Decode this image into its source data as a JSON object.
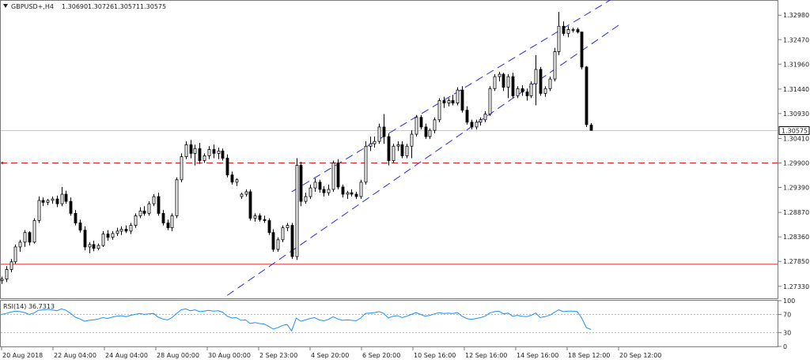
{
  "header": {
    "symbol": "GBPUSD+,H4",
    "open": "1.30690",
    "high": "1.30726",
    "low": "1.30571",
    "close": "1.30575"
  },
  "price_axis": {
    "labels": [
      "1.32980",
      "1.32470",
      "1.31960",
      "1.31440",
      "1.30930",
      "1.30410",
      "1.29900",
      "1.29390",
      "1.28870",
      "1.28360",
      "1.27850",
      "1.27330"
    ],
    "current_price": "1.30575"
  },
  "levels": {
    "resistance_dashed": 1.299,
    "support_solid": 1.2779
  },
  "rsi": {
    "label": "RSI(14) 36.7313",
    "axis_labels": [
      "100",
      "70",
      "30",
      "0"
    ],
    "levels": [
      70,
      30
    ]
  },
  "time_axis": {
    "labels": [
      "20 Aug 2018",
      "22 Aug 04:00",
      "24 Aug 04:00",
      "28 Aug 00:00",
      "30 Aug 00:00",
      "2 Sep 23:00",
      "4 Sep 20:00",
      "6 Sep 20:00",
      "10 Sep 16:00",
      "12 Sep 16:00",
      "14 Sep 16:00",
      "18 Sep 12:00",
      "20 Sep 12:00"
    ]
  },
  "colors": {
    "bull_fill": "#ffffff",
    "bear_fill": "#000000",
    "channel": "#2a2ae0",
    "level": "#e02020",
    "rsi_line": "#1e90ff"
  },
  "chart_data": {
    "type": "candlestick",
    "symbol": "GBPUSD+",
    "timeframe": "H4",
    "ylim": [
      1.2708,
      1.3328
    ],
    "x_range": [
      0,
      134
    ],
    "candles": [
      [
        1.2745,
        1.2753,
        1.2738,
        1.2748
      ],
      [
        1.2748,
        1.2775,
        1.2742,
        1.2768
      ],
      [
        1.2768,
        1.279,
        1.2762,
        1.2784
      ],
      [
        1.2784,
        1.282,
        1.278,
        1.2815
      ],
      [
        1.2815,
        1.283,
        1.2805,
        1.2825
      ],
      [
        1.2825,
        1.285,
        1.2815,
        1.2845
      ],
      [
        1.2845,
        1.2848,
        1.2818,
        1.2825
      ],
      [
        1.2825,
        1.2875,
        1.2822,
        1.287
      ],
      [
        1.287,
        1.292,
        1.2865,
        1.2912
      ],
      [
        1.2912,
        1.2918,
        1.29,
        1.2908
      ],
      [
        1.2908,
        1.2915,
        1.2902,
        1.2912
      ],
      [
        1.2912,
        1.292,
        1.2905,
        1.2915
      ],
      [
        1.2915,
        1.2922,
        1.2898,
        1.2905
      ],
      [
        1.2905,
        1.294,
        1.29,
        1.2925
      ],
      [
        1.2925,
        1.2932,
        1.2905,
        1.291
      ],
      [
        1.291,
        1.2918,
        1.288,
        1.2885
      ],
      [
        1.2885,
        1.2892,
        1.286,
        1.2865
      ],
      [
        1.2865,
        1.2872,
        1.2845,
        1.285
      ],
      [
        1.285,
        1.2858,
        1.2808,
        1.2815
      ],
      [
        1.2815,
        1.2825,
        1.2802,
        1.282
      ],
      [
        1.282,
        1.2828,
        1.2806,
        1.2812
      ],
      [
        1.2812,
        1.2822,
        1.2808,
        1.2818
      ],
      [
        1.2818,
        1.2848,
        1.2815,
        1.2842
      ],
      [
        1.2842,
        1.285,
        1.2828,
        1.2835
      ],
      [
        1.2835,
        1.2848,
        1.283,
        1.2843
      ],
      [
        1.2843,
        1.2855,
        1.2838,
        1.2848
      ],
      [
        1.2848,
        1.2858,
        1.284,
        1.2852
      ],
      [
        1.2852,
        1.286,
        1.2844,
        1.2848
      ],
      [
        1.2848,
        1.2865,
        1.2842,
        1.286
      ],
      [
        1.286,
        1.2885,
        1.2855,
        1.288
      ],
      [
        1.288,
        1.2898,
        1.2875,
        1.289
      ],
      [
        1.289,
        1.29,
        1.288,
        1.2885
      ],
      [
        1.2885,
        1.291,
        1.288,
        1.2905
      ],
      [
        1.2905,
        1.2925,
        1.29,
        1.292
      ],
      [
        1.292,
        1.2928,
        1.288,
        1.2885
      ],
      [
        1.2885,
        1.2892,
        1.286,
        1.2865
      ],
      [
        1.2865,
        1.2872,
        1.285,
        1.2855
      ],
      [
        1.2855,
        1.2885,
        1.2848,
        1.288
      ],
      [
        1.288,
        1.296,
        1.2875,
        1.2955
      ],
      [
        1.2955,
        1.301,
        1.295,
        1.3003
      ],
      [
        1.3003,
        1.3035,
        1.2998,
        1.3028
      ],
      [
        1.3028,
        1.3038,
        1.3,
        1.301
      ],
      [
        1.301,
        1.3028,
        1.2985,
        1.302
      ],
      [
        1.302,
        1.3032,
        1.2988,
        1.2995
      ],
      [
        1.2995,
        1.301,
        1.299,
        1.3005
      ],
      [
        1.3005,
        1.3025,
        1.2998,
        1.3018
      ],
      [
        1.3018,
        1.3028,
        1.3,
        1.301
      ],
      [
        1.301,
        1.3022,
        1.2998,
        1.3015
      ],
      [
        1.3015,
        1.302,
        1.2995,
        1.3
      ],
      [
        1.3,
        1.3008,
        1.296,
        1.2965
      ],
      [
        1.2965,
        1.2972,
        1.2945,
        1.295
      ],
      [
        1.295,
        1.2958,
        1.2942,
        1.2955
      ],
      [
        1.292,
        1.2928,
        1.2915,
        1.2925
      ],
      [
        1.2925,
        1.2935,
        1.292,
        1.293
      ],
      [
        1.293,
        1.2935,
        1.287,
        1.2875
      ],
      [
        1.2875,
        1.2885,
        1.2868,
        1.288
      ],
      [
        1.288,
        1.2885,
        1.2868,
        1.2872
      ],
      [
        1.2872,
        1.288,
        1.2865,
        1.287
      ],
      [
        1.287,
        1.2875,
        1.284,
        1.2845
      ],
      [
        1.2845,
        1.2852,
        1.2805,
        1.281
      ],
      [
        1.281,
        1.2835,
        1.2805,
        1.283
      ],
      [
        1.283,
        1.286,
        1.2825,
        1.2855
      ],
      [
        1.2855,
        1.2865,
        1.2848,
        1.286
      ],
      [
        1.286,
        1.2865,
        1.279,
        1.2795
      ],
      [
        1.2795,
        1.3,
        1.2788,
        1.2985
      ],
      [
        1.2985,
        1.2992,
        1.29,
        1.291
      ],
      [
        1.291,
        1.2928,
        1.2905,
        1.292
      ],
      [
        1.292,
        1.2945,
        1.2915,
        1.2938
      ],
      [
        1.2938,
        1.2958,
        1.293,
        1.295
      ],
      [
        1.295,
        1.2955,
        1.2928,
        1.2935
      ],
      [
        1.2935,
        1.2942,
        1.292,
        1.2928
      ],
      [
        1.2928,
        1.2945,
        1.2922,
        1.2935
      ],
      [
        1.2935,
        1.2995,
        1.293,
        1.299
      ],
      [
        1.299,
        1.2998,
        1.2935,
        1.294
      ],
      [
        1.294,
        1.2945,
        1.2918,
        1.2925
      ],
      [
        1.2925,
        1.2932,
        1.2915,
        1.2928
      ],
      [
        1.2928,
        1.2935,
        1.292,
        1.2925
      ],
      [
        1.2925,
        1.293,
        1.2915,
        1.292
      ],
      [
        1.292,
        1.2955,
        1.2915,
        1.295
      ],
      [
        1.295,
        1.3035,
        1.2945,
        1.3025
      ],
      [
        1.3025,
        1.3045,
        1.3015,
        1.303
      ],
      [
        1.303,
        1.3045,
        1.3022,
        1.3035
      ],
      [
        1.3035,
        1.3072,
        1.303,
        1.3065
      ],
      [
        1.3065,
        1.3092,
        1.303,
        1.3045
      ],
      [
        1.3045,
        1.3052,
        1.2985,
        1.2995
      ],
      [
        1.2995,
        1.303,
        1.299,
        1.3025
      ],
      [
        1.3025,
        1.3035,
        1.3015,
        1.3028
      ],
      [
        1.3028,
        1.3035,
        1.3,
        1.3005
      ],
      [
        1.3005,
        1.303,
        1.3,
        1.3025
      ],
      [
        1.3025,
        1.3058,
        1.3,
        1.305
      ],
      [
        1.305,
        1.309,
        1.3045,
        1.3085
      ],
      [
        1.3085,
        1.309,
        1.306,
        1.3065
      ],
      [
        1.3065,
        1.3072,
        1.304,
        1.3045
      ],
      [
        1.3045,
        1.3062,
        1.304,
        1.3058
      ],
      [
        1.3058,
        1.3085,
        1.3052,
        1.308
      ],
      [
        1.308,
        1.3125,
        1.3075,
        1.312
      ],
      [
        1.312,
        1.3128,
        1.3105,
        1.3115
      ],
      [
        1.3115,
        1.3125,
        1.3108,
        1.312
      ],
      [
        1.312,
        1.3132,
        1.311,
        1.3115
      ],
      [
        1.3115,
        1.3148,
        1.311,
        1.3142
      ],
      [
        1.3142,
        1.315,
        1.3095,
        1.31
      ],
      [
        1.31,
        1.3108,
        1.307,
        1.3075
      ],
      [
        1.3075,
        1.308,
        1.306,
        1.3065
      ],
      [
        1.3065,
        1.308,
        1.306,
        1.3075
      ],
      [
        1.3075,
        1.3085,
        1.3068,
        1.308
      ],
      [
        1.308,
        1.3098,
        1.3075,
        1.3092
      ],
      [
        1.3092,
        1.315,
        1.3088,
        1.3145
      ],
      [
        1.3145,
        1.3175,
        1.314,
        1.317
      ],
      [
        1.317,
        1.318,
        1.316,
        1.3175
      ],
      [
        1.3175,
        1.3178,
        1.314,
        1.3148
      ],
      [
        1.3148,
        1.3175,
        1.3125,
        1.317
      ],
      [
        1.317,
        1.3178,
        1.3125,
        1.313
      ],
      [
        1.313,
        1.315,
        1.3125,
        1.3145
      ],
      [
        1.3145,
        1.3152,
        1.313,
        1.3138
      ],
      [
        1.3138,
        1.3145,
        1.312,
        1.313
      ],
      [
        1.313,
        1.316,
        1.3125,
        1.3155
      ],
      [
        1.3155,
        1.3215,
        1.311,
        1.3185
      ],
      [
        1.3185,
        1.319,
        1.313,
        1.3135
      ],
      [
        1.3135,
        1.315,
        1.3128,
        1.3145
      ],
      [
        1.3145,
        1.317,
        1.314,
        1.3165
      ],
      [
        1.3165,
        1.323,
        1.316,
        1.3222
      ],
      [
        1.3222,
        1.3305,
        1.3215,
        1.3275
      ],
      [
        1.3275,
        1.3285,
        1.3255,
        1.326
      ],
      [
        1.326,
        1.3275,
        1.3252,
        1.3268
      ],
      [
        1.3268,
        1.3272,
        1.3262,
        1.3268
      ],
      [
        1.3268,
        1.3272,
        1.326,
        1.3263
      ],
      [
        1.3263,
        1.3263,
        1.3185,
        1.319
      ],
      [
        1.319,
        1.3192,
        1.3065,
        1.307
      ],
      [
        1.3069,
        1.3073,
        1.3057,
        1.3058
      ]
    ],
    "channel_lines": [
      {
        "from": [
          63,
          1.293
        ],
        "to": [
          134,
          1.334
        ]
      },
      {
        "from": [
          49,
          1.2714
        ],
        "to": [
          134,
          1.3277
        ]
      }
    ],
    "rsi_values": [
      70,
      72,
      75,
      77,
      76,
      74,
      70,
      73,
      79,
      80,
      81,
      80,
      78,
      82,
      79,
      72,
      64,
      60,
      55,
      57,
      58,
      60,
      63,
      61,
      64,
      66,
      67,
      65,
      68,
      70,
      72,
      70,
      71,
      72,
      64,
      60,
      58,
      63,
      72,
      80,
      82,
      78,
      80,
      76,
      77,
      79,
      77,
      78,
      75,
      66,
      62,
      63,
      57,
      58,
      50,
      52,
      50,
      49,
      44,
      38,
      41,
      46,
      48,
      34,
      62,
      55,
      58,
      61,
      63,
      58,
      56,
      59,
      65,
      60,
      57,
      58,
      57,
      56,
      62,
      72,
      73,
      74,
      76,
      72,
      62,
      66,
      67,
      63,
      66,
      70,
      74,
      70,
      66,
      68,
      71,
      74,
      72,
      73,
      72,
      74,
      66,
      61,
      59,
      61,
      63,
      66,
      73,
      76,
      77,
      71,
      73,
      66,
      68,
      66,
      65,
      68,
      73,
      63,
      65,
      68,
      74,
      80,
      76,
      77,
      77,
      76,
      62,
      41,
      37
    ],
    "rsi_ylim": [
      0,
      100
    ]
  }
}
